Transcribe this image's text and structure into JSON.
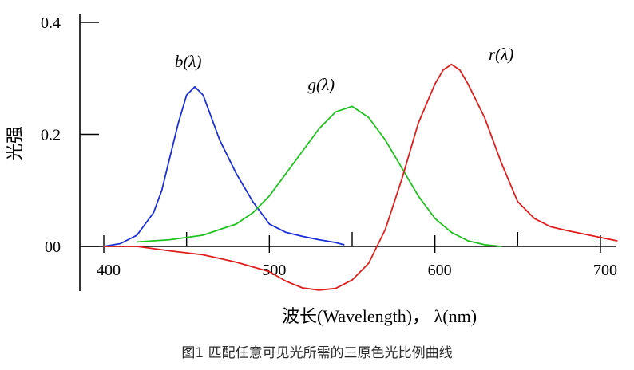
{
  "chart_data": {
    "type": "line",
    "ylabel": "光强",
    "xlabel": "波长(Wavelength)， λ(nm)",
    "caption": "图1 匹配任意可见光所需的三原色光比例曲线",
    "x_ticks": [
      "400",
      "500",
      "600",
      "700"
    ],
    "x_tick_values": [
      400,
      500,
      600,
      700
    ],
    "x_minor_ticks": [
      450,
      550,
      650
    ],
    "y_ticks": [
      "0.4",
      "0.2",
      "00"
    ],
    "y_tick_values": [
      0.4,
      0.2,
      0.0
    ],
    "xlim": [
      384,
      710
    ],
    "ylim": [
      -0.08,
      0.42
    ],
    "grid": false,
    "series": [
      {
        "name": "b(λ)",
        "color": "#1a2fd6",
        "x": [
          400,
          410,
          420,
          430,
          435,
          440,
          445,
          450,
          455,
          460,
          470,
          480,
          490,
          500,
          510,
          520,
          530,
          540,
          545
        ],
        "y": [
          0.0,
          0.005,
          0.02,
          0.06,
          0.1,
          0.16,
          0.22,
          0.27,
          0.285,
          0.27,
          0.19,
          0.13,
          0.08,
          0.04,
          0.025,
          0.018,
          0.012,
          0.007,
          0.003
        ]
      },
      {
        "name": "g(λ)",
        "color": "#1fc21f",
        "x": [
          420,
          440,
          460,
          480,
          490,
          500,
          510,
          520,
          530,
          540,
          550,
          560,
          570,
          580,
          590,
          600,
          610,
          620,
          630,
          640
        ],
        "y": [
          0.008,
          0.012,
          0.02,
          0.04,
          0.06,
          0.09,
          0.13,
          0.17,
          0.21,
          0.24,
          0.25,
          0.23,
          0.19,
          0.14,
          0.09,
          0.05,
          0.025,
          0.01,
          0.003,
          0.0
        ]
      },
      {
        "name": "r(λ)",
        "color": "#e01e1e",
        "x": [
          400,
          420,
          440,
          460,
          480,
          500,
          510,
          520,
          530,
          540,
          550,
          560,
          570,
          580,
          590,
          600,
          605,
          610,
          615,
          620,
          630,
          640,
          650,
          660,
          670,
          680,
          690,
          700,
          710
        ],
        "y": [
          0.0,
          0.0,
          -0.008,
          -0.015,
          -0.028,
          -0.045,
          -0.062,
          -0.074,
          -0.078,
          -0.075,
          -0.06,
          -0.03,
          0.03,
          0.12,
          0.22,
          0.29,
          0.315,
          0.325,
          0.315,
          0.29,
          0.23,
          0.15,
          0.08,
          0.05,
          0.035,
          0.028,
          0.022,
          0.016,
          0.01
        ]
      }
    ]
  }
}
